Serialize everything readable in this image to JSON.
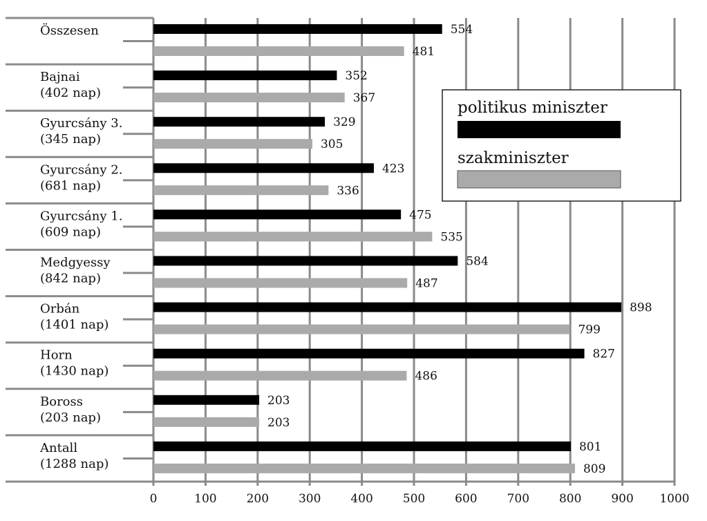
{
  "chart_data": {
    "type": "bar",
    "orientation": "horizontal",
    "categories": [
      {
        "name": "Összesen",
        "sub": ""
      },
      {
        "name": "Bajnai",
        "sub": "(402 nap)"
      },
      {
        "name": "Gyurcsány 3.",
        "sub": "(345 nap)"
      },
      {
        "name": "Gyurcsány 2.",
        "sub": "(681 nap)"
      },
      {
        "name": "Gyurcsány 1.",
        "sub": "(609 nap)"
      },
      {
        "name": "Medgyessy",
        "sub": "(842 nap)"
      },
      {
        "name": "Orbán",
        "sub": "(1401 nap)"
      },
      {
        "name": "Horn",
        "sub": "(1430 nap)"
      },
      {
        "name": "Boross",
        "sub": "(203 nap)"
      },
      {
        "name": "Antall",
        "sub": "(1288 nap)"
      }
    ],
    "series": [
      {
        "name": "politikus miniszter",
        "color": "#000000",
        "values": [
          554,
          352,
          329,
          423,
          475,
          584,
          898,
          827,
          203,
          801
        ]
      },
      {
        "name": "szakminiszter",
        "color": "#aaaaaa",
        "values": [
          481,
          367,
          305,
          336,
          535,
          487,
          799,
          486,
          203,
          809
        ]
      }
    ],
    "xlim": [
      0,
      1000
    ],
    "xticks": [
      0,
      100,
      200,
      300,
      400,
      500,
      600,
      700,
      800,
      900,
      1000
    ],
    "grid": true,
    "legend_position": "top-right",
    "title": "",
    "xlabel": "",
    "ylabel": ""
  }
}
